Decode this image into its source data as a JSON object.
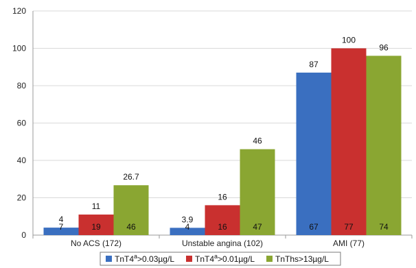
{
  "chart_data": {
    "type": "bar",
    "categories": [
      "No ACS (172)",
      "Unstable angina (102)",
      "AMI (77)"
    ],
    "ylim": [
      0,
      120
    ],
    "yticks": [
      0,
      20,
      40,
      60,
      80,
      100,
      120
    ],
    "grid": true,
    "legend_position": "bottom",
    "series": [
      {
        "name_parts": [
          "TnT4",
          "a",
          ">0.03µg/L"
        ],
        "color": "#3a6fc0",
        "values": [
          4,
          3.9,
          87
        ],
        "top_labels": [
          "4",
          "3.9",
          "87"
        ],
        "inner_labels": [
          "7",
          "4",
          "67"
        ]
      },
      {
        "name_parts": [
          "TnT4",
          "a",
          ">0.01µg/L"
        ],
        "color": "#c9302f",
        "values": [
          11,
          16,
          100
        ],
        "top_labels": [
          "11",
          "16",
          "100"
        ],
        "inner_labels": [
          "19",
          "16",
          "77"
        ]
      },
      {
        "name_parts": [
          "TnThs>13µg/L",
          "",
          ""
        ],
        "color": "#8aa632",
        "values": [
          26.7,
          46,
          96
        ],
        "top_labels": [
          "26.7",
          "46",
          "96"
        ],
        "inner_labels": [
          "46",
          "47",
          "74"
        ]
      }
    ]
  }
}
